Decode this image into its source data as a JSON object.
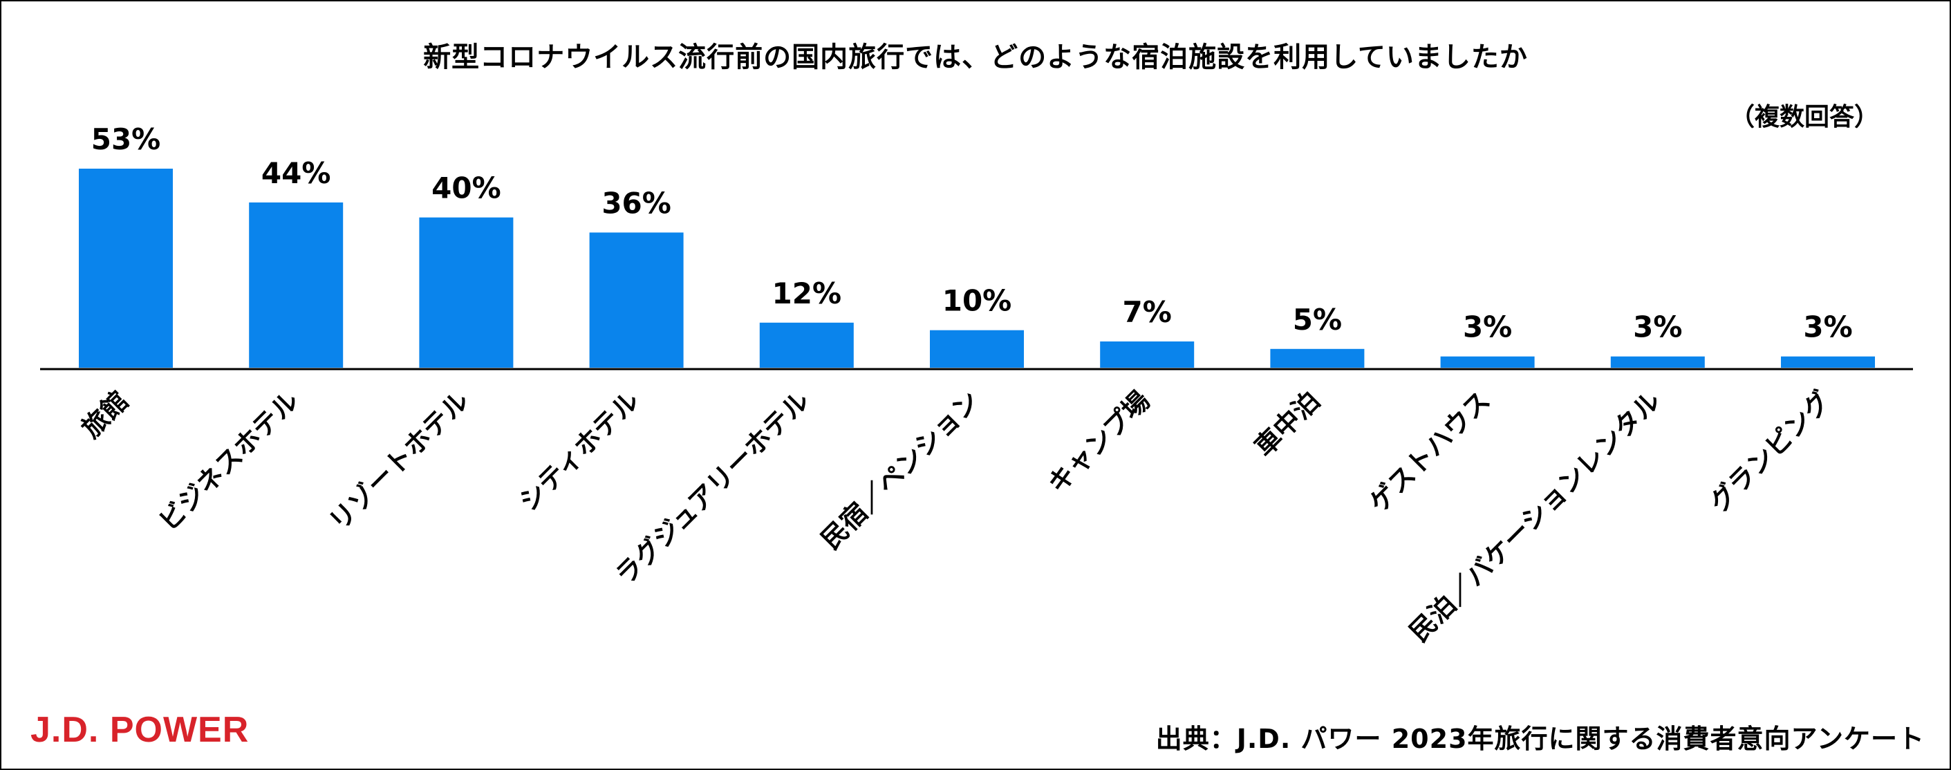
{
  "chart_data": {
    "type": "bar",
    "title": "新型コロナウイルス流行前の国内旅行では、どのような宿泊施設を利用していましたか",
    "note": "（複数回答）",
    "categories": [
      "旅館",
      "ビジネスホテル",
      "リゾートホテル",
      "シティホテル",
      "ラグジュアリーホテル",
      "民宿／ペンション",
      "キャンプ場",
      "車中泊",
      "ゲストハウス",
      "民泊／バケーションレンタル",
      "グランピング"
    ],
    "values": [
      53,
      44,
      40,
      36,
      12,
      10,
      7,
      5,
      3,
      3,
      3
    ],
    "labels": [
      "53%",
      "44%",
      "40%",
      "36%",
      "12%",
      "10%",
      "7%",
      "5%",
      "3%",
      "3%",
      "3%"
    ],
    "xlabel": "",
    "ylabel": "",
    "ylim": [
      0,
      53
    ],
    "grid": false,
    "legend": "none",
    "bar_color": "#0a84ec"
  },
  "footer": {
    "logo": "J.D. POWER",
    "source": "出典：J.D. パワー 2023年旅行に関する消費者意向アンケート"
  },
  "colors": {
    "logo": "#d8232a",
    "axis": "#000000"
  }
}
